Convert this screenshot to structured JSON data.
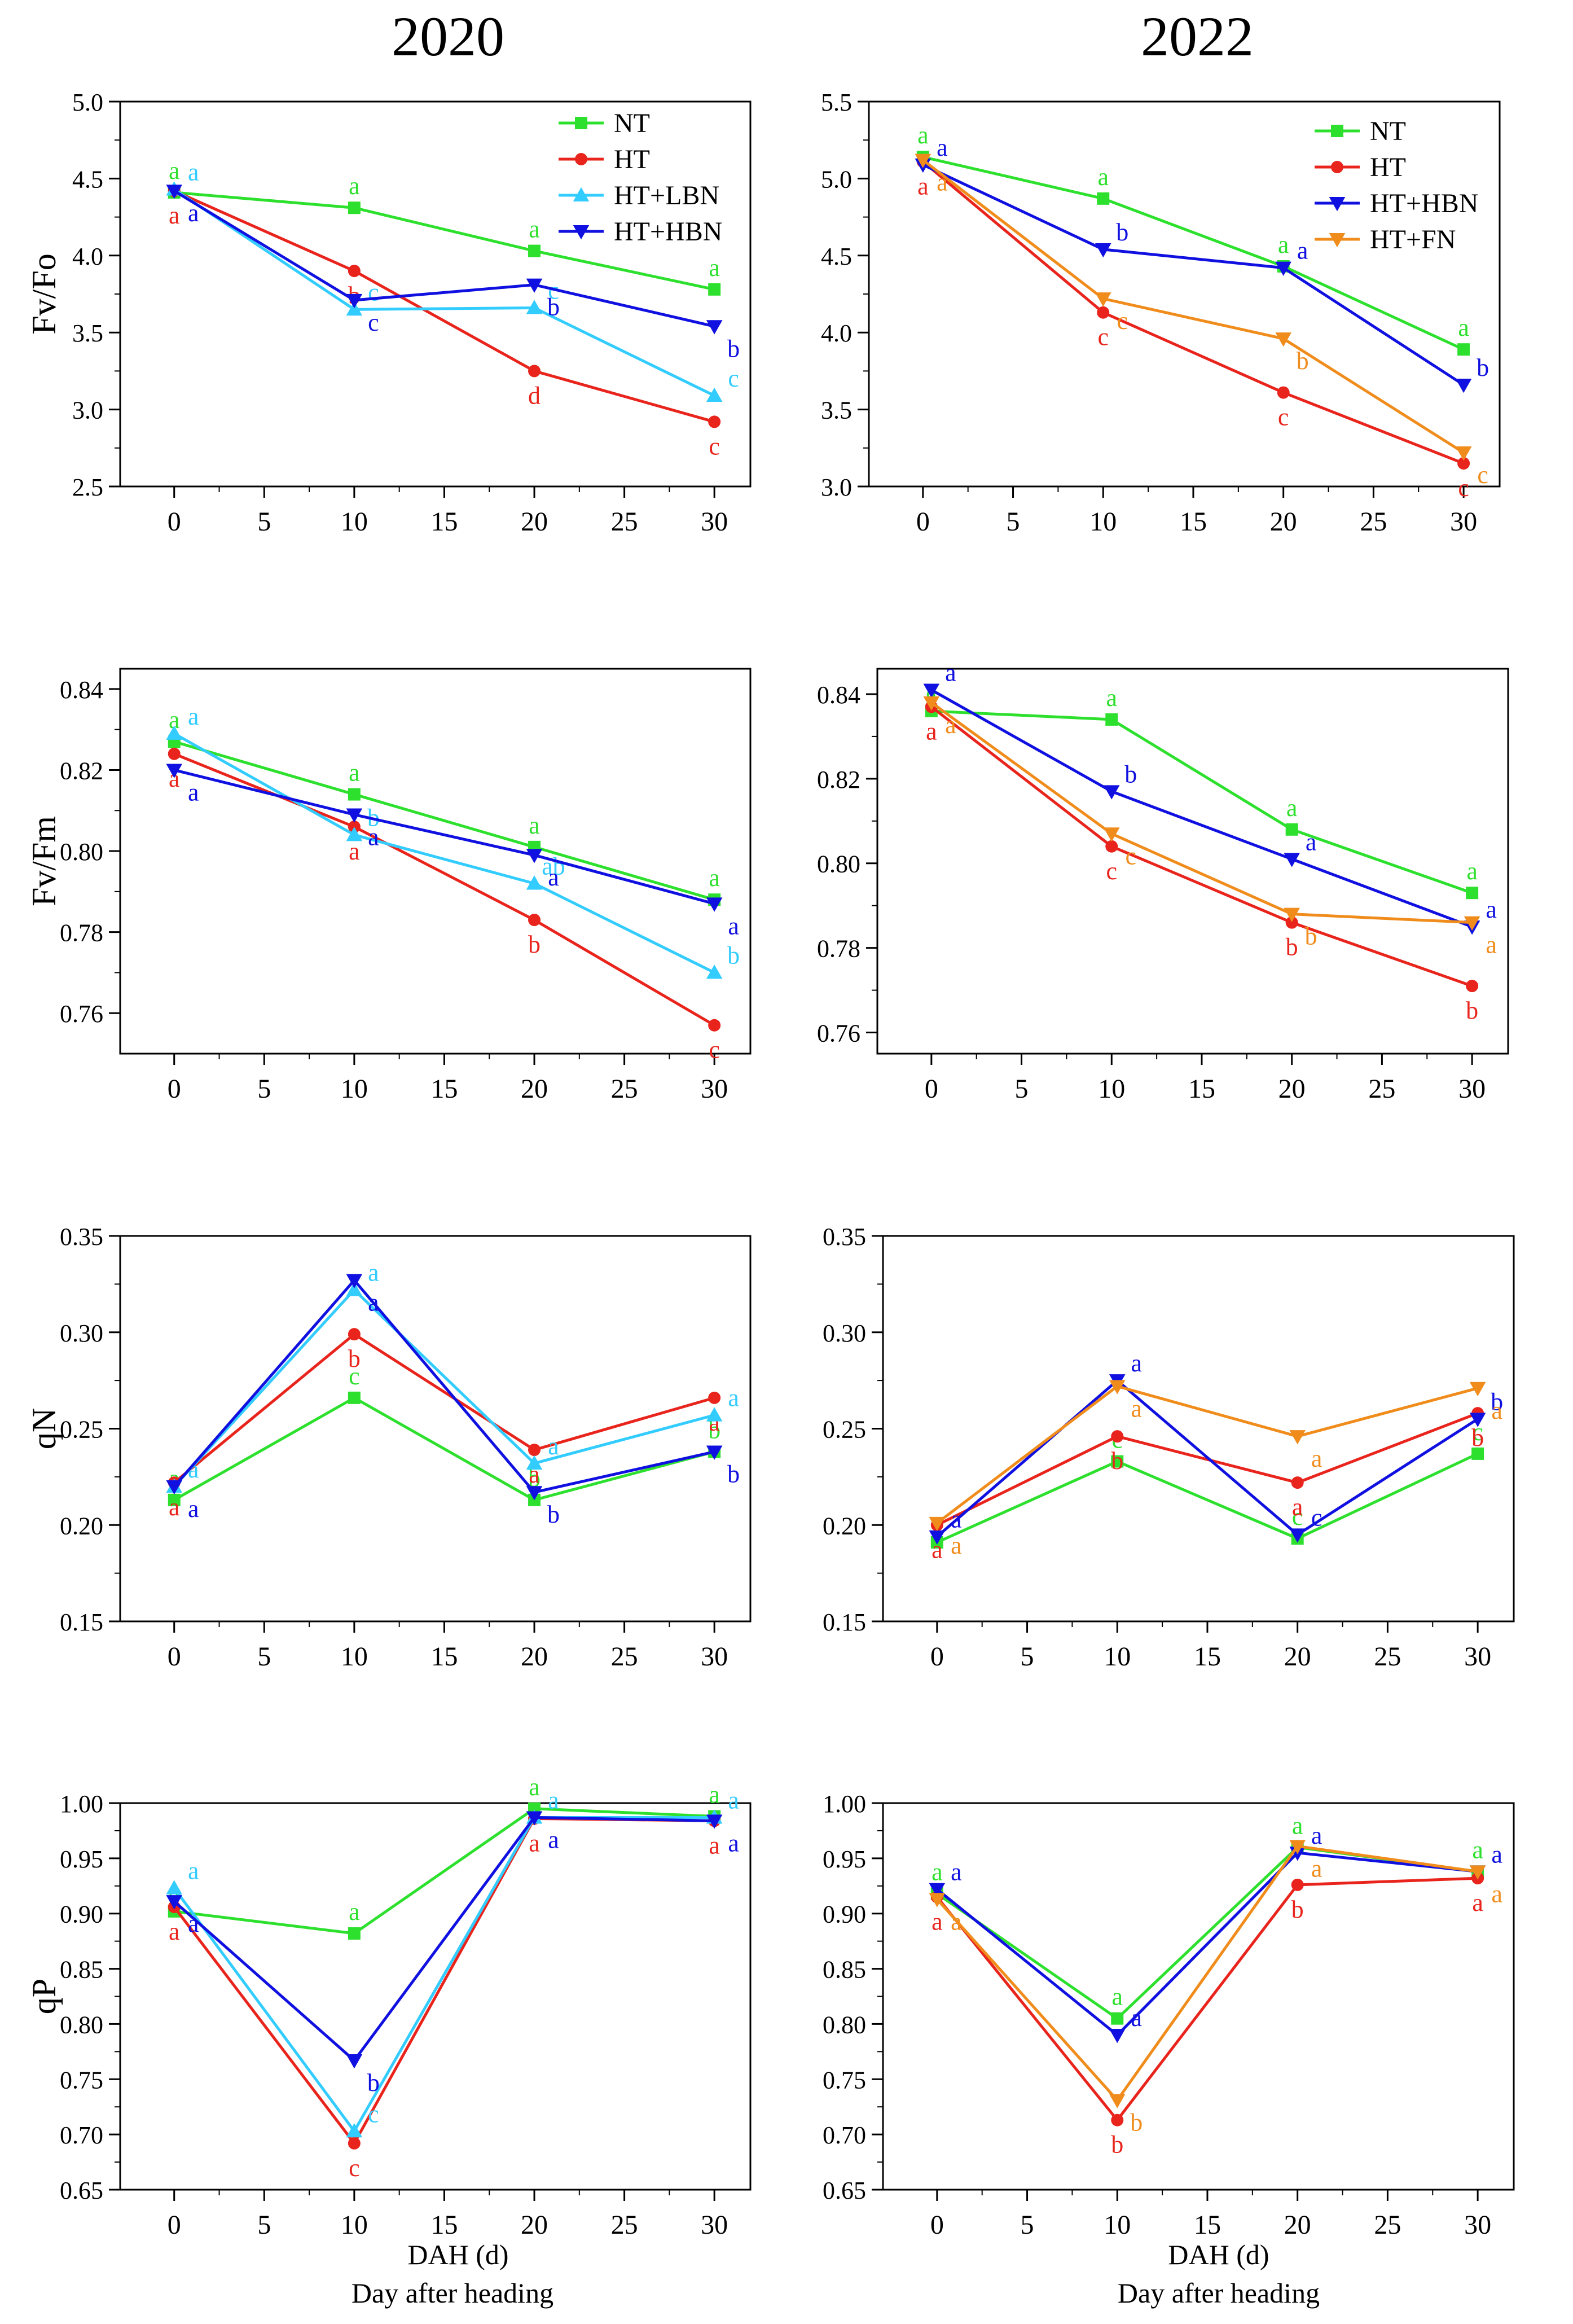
{
  "years": [
    "2020",
    "2022"
  ],
  "footer": {
    "xlabel_left": "DAH (d)",
    "sub_left": "Day after heading",
    "xlabel_right": "DAH (d)",
    "sub_right": "Day after heading"
  },
  "styles": {
    "NT": {
      "color": "#2ee02e",
      "marker": "square"
    },
    "HT": {
      "color": "#e8241c",
      "marker": "circle"
    },
    "HT+LBN": {
      "color": "#33ccff",
      "marker": "triangle-up"
    },
    "HT+HBN": {
      "color": "#1010e0",
      "marker": "triangle-down"
    },
    "HT+FN": {
      "color": "#f08c1c",
      "marker": "triangle-down"
    }
  },
  "chart_data": [
    {
      "id": "fvfo-2020",
      "type": "line",
      "ylabel": "Fv/Fo",
      "x": [
        0,
        10,
        20,
        30
      ],
      "xlim": [
        -3,
        32
      ],
      "ylim": [
        2.5,
        5.0
      ],
      "xticks": [
        "0",
        "5",
        "10",
        "15",
        "20",
        "25",
        "30"
      ],
      "yticks": [
        "2.5",
        "3.0",
        "3.5",
        "4.0",
        "4.5",
        "5.0"
      ],
      "legend": [
        "NT",
        "HT",
        "HT+LBN",
        "HT+HBN"
      ],
      "series": [
        {
          "name": "NT",
          "values": [
            4.41,
            4.31,
            4.03,
            3.78
          ],
          "letters": [
            "a",
            "a",
            "a",
            "a"
          ]
        },
        {
          "name": "HT",
          "values": [
            4.42,
            3.9,
            3.25,
            2.92
          ],
          "letters": [
            "a",
            "b",
            "d",
            "c"
          ]
        },
        {
          "name": "HT+LBN",
          "values": [
            4.43,
            3.65,
            3.66,
            3.09
          ],
          "letters": [
            "a",
            "c",
            "c",
            "c"
          ]
        },
        {
          "name": "HT+HBN",
          "values": [
            4.42,
            3.71,
            3.81,
            3.54
          ],
          "letters": [
            "a",
            "c",
            "b",
            "b"
          ]
        }
      ]
    },
    {
      "id": "fvfo-2022",
      "type": "line",
      "ylabel": "",
      "x": [
        0,
        10,
        20,
        30
      ],
      "xlim": [
        -3,
        32
      ],
      "ylim": [
        3.0,
        5.5
      ],
      "xticks": [
        "0",
        "5",
        "10",
        "15",
        "20",
        "25",
        "30"
      ],
      "yticks": [
        "3.0",
        "3.5",
        "4.0",
        "4.5",
        "5.0",
        "5.5"
      ],
      "legend": [
        "NT",
        "HT",
        "HT+HBN",
        "HT+FN"
      ],
      "series": [
        {
          "name": "NT",
          "values": [
            5.14,
            4.87,
            4.43,
            3.89
          ],
          "letters": [
            "a",
            "a",
            "a",
            "a"
          ]
        },
        {
          "name": "HT",
          "values": [
            5.11,
            4.13,
            3.61,
            3.15
          ],
          "letters": [
            "a",
            "c",
            "c",
            "c"
          ]
        },
        {
          "name": "HT+HBN",
          "values": [
            5.09,
            4.54,
            4.42,
            3.66
          ],
          "letters": [
            "a",
            "b",
            "a",
            "b"
          ]
        },
        {
          "name": "HT+FN",
          "values": [
            5.12,
            4.22,
            3.96,
            3.22
          ],
          "letters": [
            "a",
            "c",
            "b",
            "c"
          ]
        }
      ]
    },
    {
      "id": "fvfm-2020",
      "type": "line",
      "ylabel": "Fv/Fm",
      "x": [
        0,
        10,
        20,
        30
      ],
      "xlim": [
        -3,
        32
      ],
      "ylim": [
        0.75,
        0.845
      ],
      "xticks": [
        "0",
        "5",
        "10",
        "15",
        "20",
        "25",
        "30"
      ],
      "yticks": [
        "0.76",
        "0.78",
        "0.80",
        "0.82",
        "0.84"
      ],
      "legend": [],
      "series": [
        {
          "name": "NT",
          "values": [
            0.827,
            0.814,
            0.801,
            0.788
          ],
          "letters": [
            "a",
            "a",
            "a",
            "a"
          ]
        },
        {
          "name": "HT",
          "values": [
            0.824,
            0.806,
            0.783,
            0.757
          ],
          "letters": [
            "a",
            "a",
            "b",
            "c"
          ]
        },
        {
          "name": "HT+LBN",
          "values": [
            0.829,
            0.804,
            0.792,
            0.77
          ],
          "letters": [
            "a",
            "b",
            "ab",
            "b"
          ]
        },
        {
          "name": "HT+HBN",
          "values": [
            0.82,
            0.809,
            0.799,
            0.787
          ],
          "letters": [
            "a",
            "a",
            "a",
            "a"
          ]
        }
      ]
    },
    {
      "id": "fvfm-2022",
      "type": "line",
      "ylabel": "",
      "x": [
        0,
        10,
        20,
        30
      ],
      "xlim": [
        -3,
        32
      ],
      "ylim": [
        0.755,
        0.846
      ],
      "xticks": [
        "0",
        "5",
        "10",
        "15",
        "20",
        "25",
        "30"
      ],
      "yticks": [
        "0.76",
        "0.78",
        "0.80",
        "0.82",
        "0.84"
      ],
      "legend": [],
      "series": [
        {
          "name": "NT",
          "values": [
            0.836,
            0.834,
            0.808,
            0.793
          ],
          "letters": [
            "a",
            "a",
            "a",
            "a"
          ]
        },
        {
          "name": "HT",
          "values": [
            0.837,
            0.804,
            0.786,
            0.771
          ],
          "letters": [
            "a",
            "c",
            "b",
            "b"
          ]
        },
        {
          "name": "HT+HBN",
          "values": [
            0.841,
            0.817,
            0.801,
            0.785
          ],
          "letters": [
            "a",
            "b",
            "a",
            "a"
          ]
        },
        {
          "name": "HT+FN",
          "values": [
            0.838,
            0.807,
            0.788,
            0.786
          ],
          "letters": [
            "a",
            "c",
            "b",
            "a"
          ]
        }
      ]
    },
    {
      "id": "qn-2020",
      "type": "line",
      "ylabel": "qN",
      "x": [
        0,
        10,
        20,
        30
      ],
      "xlim": [
        -3,
        32
      ],
      "ylim": [
        0.15,
        0.35
      ],
      "xticks": [
        "0",
        "5",
        "10",
        "15",
        "20",
        "25",
        "30"
      ],
      "yticks": [
        "0.15",
        "0.20",
        "0.25",
        "0.30",
        "0.35"
      ],
      "legend": [],
      "series": [
        {
          "name": "NT",
          "values": [
            0.213,
            0.266,
            0.213,
            0.238
          ],
          "letters": [
            "a",
            "c",
            "b",
            "b"
          ]
        },
        {
          "name": "HT",
          "values": [
            0.222,
            0.299,
            0.239,
            0.266
          ],
          "letters": [
            "a",
            "b",
            "a",
            "a"
          ]
        },
        {
          "name": "HT+LBN",
          "values": [
            0.22,
            0.322,
            0.232,
            0.257
          ],
          "letters": [
            "a",
            "a",
            "a",
            "a"
          ]
        },
        {
          "name": "HT+HBN",
          "values": [
            0.22,
            0.327,
            0.217,
            0.238
          ],
          "letters": [
            "a",
            "a",
            "b",
            "b"
          ]
        }
      ]
    },
    {
      "id": "qn-2022",
      "type": "line",
      "ylabel": "",
      "x": [
        0,
        10,
        20,
        30
      ],
      "xlim": [
        -3,
        32
      ],
      "ylim": [
        0.15,
        0.35
      ],
      "xticks": [
        "0",
        "5",
        "10",
        "15",
        "20",
        "25",
        "30"
      ],
      "yticks": [
        "0.15",
        "0.20",
        "0.25",
        "0.30",
        "0.35"
      ],
      "legend": [],
      "series": [
        {
          "name": "NT",
          "values": [
            0.191,
            0.233,
            0.193,
            0.237
          ],
          "letters": [
            "a",
            "c",
            "c",
            "c"
          ]
        },
        {
          "name": "HT",
          "values": [
            0.2,
            0.246,
            0.222,
            0.258
          ],
          "letters": [
            "a",
            "b",
            "a",
            "b"
          ]
        },
        {
          "name": "HT+HBN",
          "values": [
            0.194,
            0.275,
            0.195,
            0.255
          ],
          "letters": [
            "a",
            "a",
            "c",
            "b"
          ]
        },
        {
          "name": "HT+FN",
          "values": [
            0.201,
            0.272,
            0.246,
            0.271
          ],
          "letters": [
            "a",
            "a",
            "a",
            "a"
          ]
        }
      ]
    },
    {
      "id": "qp-2020",
      "type": "line",
      "ylabel": "qP",
      "x": [
        0,
        10,
        20,
        30
      ],
      "xlim": [
        -3,
        32
      ],
      "ylim": [
        0.65,
        1.0
      ],
      "xticks": [
        "0",
        "5",
        "10",
        "15",
        "20",
        "25",
        "30"
      ],
      "yticks": [
        "0.65",
        "0.70",
        "0.75",
        "0.80",
        "0.85",
        "0.90",
        "0.95",
        "1.00"
      ],
      "legend": [],
      "series": [
        {
          "name": "NT",
          "values": [
            0.902,
            0.882,
            0.995,
            0.988
          ],
          "letters": [
            "a",
            "a",
            "a",
            "a"
          ]
        },
        {
          "name": "HT",
          "values": [
            0.906,
            0.692,
            0.986,
            0.984
          ],
          "letters": [
            "a",
            "c",
            "a",
            "a"
          ]
        },
        {
          "name": "HT+LBN",
          "values": [
            0.923,
            0.703,
            0.987,
            0.987
          ],
          "letters": [
            "a",
            "c",
            "a",
            "a"
          ]
        },
        {
          "name": "HT+HBN",
          "values": [
            0.911,
            0.767,
            0.987,
            0.984
          ],
          "letters": [
            "a",
            "b",
            "a",
            "a"
          ]
        }
      ]
    },
    {
      "id": "qp-2022",
      "type": "line",
      "ylabel": "",
      "x": [
        0,
        10,
        20,
        30
      ],
      "xlim": [
        -3,
        32
      ],
      "ylim": [
        0.65,
        1.0
      ],
      "xticks": [
        "0",
        "5",
        "10",
        "15",
        "20",
        "25",
        "30"
      ],
      "yticks": [
        "0.65",
        "0.70",
        "0.75",
        "0.80",
        "0.85",
        "0.90",
        "0.95",
        "1.00"
      ],
      "legend": [],
      "series": [
        {
          "name": "NT",
          "values": [
            0.918,
            0.805,
            0.96,
            0.938
          ],
          "letters": [
            "a",
            "a",
            "a",
            "a"
          ]
        },
        {
          "name": "HT",
          "values": [
            0.915,
            0.713,
            0.926,
            0.932
          ],
          "letters": [
            "a",
            "b",
            "b",
            "a"
          ]
        },
        {
          "name": "HT+HBN",
          "values": [
            0.922,
            0.79,
            0.955,
            0.938
          ],
          "letters": [
            "a",
            "a",
            "a",
            "a"
          ]
        },
        {
          "name": "HT+FN",
          "values": [
            0.913,
            0.731,
            0.961,
            0.938
          ],
          "letters": [
            "a",
            "b",
            "a",
            "a"
          ]
        }
      ]
    }
  ]
}
